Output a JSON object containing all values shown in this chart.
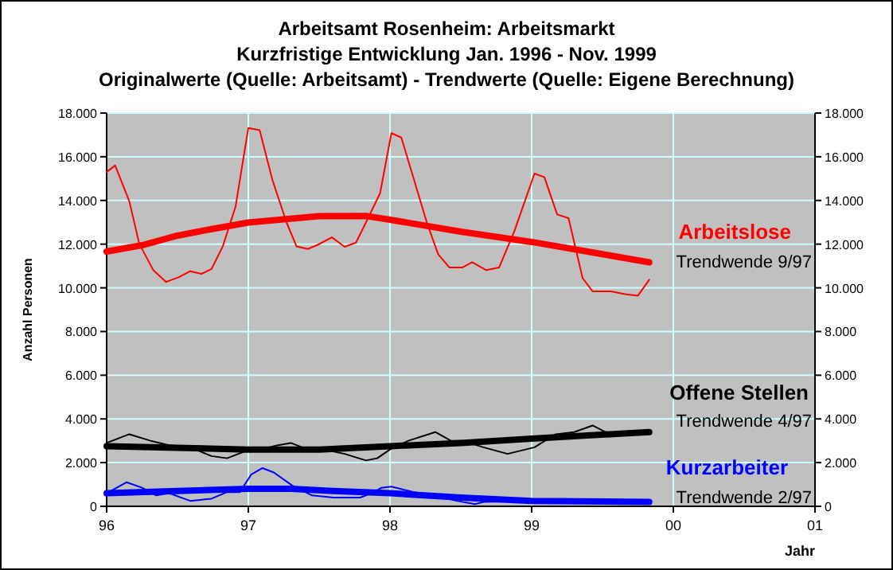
{
  "chart_data": {
    "type": "line",
    "title": "Arbeitsamt Rosenheim: Arbeitsmarkt",
    "subtitle": "Kurzfristige Entwicklung Jan. 1996 - Nov. 1999",
    "annotations": [
      "Originalwerte (Quelle: Arbeitsamt)  -  Trendwerte (Quelle: Eigene Berechnung)",
      "Trendwende 9/97",
      "Trendwende 4/97",
      "Trendwende 2/97"
    ],
    "xlabel": "Jahr",
    "ylabel": "Anzahl Personen",
    "xlim": [
      1996,
      2001
    ],
    "xticks": [
      {
        "value": 1996,
        "label": "96"
      },
      {
        "value": 1997,
        "label": "97"
      },
      {
        "value": 1998,
        "label": "98"
      },
      {
        "value": 1999,
        "label": "99"
      },
      {
        "value": 2000,
        "label": "00"
      },
      {
        "value": 2001,
        "label": "01"
      }
    ],
    "ylim": [
      0,
      18000
    ],
    "yticks": [
      {
        "value": 0,
        "label": "0"
      },
      {
        "value": 2000,
        "label": "2.000"
      },
      {
        "value": 4000,
        "label": "4.000"
      },
      {
        "value": 6000,
        "label": "6.000"
      },
      {
        "value": 8000,
        "label": "8.000"
      },
      {
        "value": 10000,
        "label": "10.000"
      },
      {
        "value": 12000,
        "label": "12.000"
      },
      {
        "value": 14000,
        "label": "14.000"
      },
      {
        "value": 16000,
        "label": "16.000"
      },
      {
        "value": 18000,
        "label": "18.000"
      }
    ],
    "y2lim": [
      0,
      18000
    ],
    "y2ticks": [
      {
        "value": 0,
        "label": "0"
      },
      {
        "value": 2000,
        "label": "2.000"
      },
      {
        "value": 4000,
        "label": "4.000"
      },
      {
        "value": 6000,
        "label": "6.000"
      },
      {
        "value": 8000,
        "label": "8.000"
      },
      {
        "value": 10000,
        "label": "10.000"
      },
      {
        "value": 12000,
        "label": "12.000"
      },
      {
        "value": 14000,
        "label": "14.000"
      },
      {
        "value": 16000,
        "label": "16.000"
      },
      {
        "value": 18000,
        "label": "18.000"
      }
    ],
    "grid": true,
    "series": [
      {
        "color": "#ff0000",
        "x": [
          1996.0,
          1996.06,
          1996.16,
          1996.23,
          1996.33,
          1996.42,
          1996.51,
          1996.59,
          1996.67,
          1996.74,
          1996.82,
          1996.91,
          1997.0,
          1997.08,
          1997.17,
          1997.27,
          1997.34,
          1997.42,
          1997.49,
          1997.59,
          1997.68,
          1997.76,
          1997.83,
          1997.93,
          1998.01,
          1998.08,
          1998.17,
          1998.26,
          1998.34,
          1998.42,
          1998.51,
          1998.58,
          1998.68,
          1998.77,
          1998.88,
          1999.02,
          1999.09,
          1999.18,
          1999.26,
          1999.36,
          1999.43,
          1999.56,
          1999.66,
          1999.75,
          1999.83
        ],
        "values": [
          15300,
          15600,
          13960,
          12020,
          10800,
          10270,
          10490,
          10760,
          10640,
          10860,
          11900,
          13720,
          17320,
          17220,
          14940,
          12990,
          11900,
          11780,
          11970,
          12310,
          11880,
          12070,
          12990,
          14330,
          17080,
          16880,
          14940,
          12990,
          11540,
          10930,
          10930,
          11170,
          10810,
          10930,
          12630,
          15230,
          15060,
          13360,
          13190,
          10440,
          9840,
          9840,
          9710,
          9640,
          10370
        ]
      },
      {
        "name": "Arbeitslose",
        "color": "#ff0000",
        "x": [
          1996.0,
          1996.25,
          1996.5,
          1996.75,
          1997.0,
          1997.5,
          1997.83,
          1998.0,
          1998.5,
          1999.0,
          1999.5,
          1999.83
        ],
        "values": [
          11660,
          11950,
          12390,
          12700,
          12990,
          13280,
          13290,
          13120,
          12570,
          12100,
          11540,
          11170
        ]
      },
      {
        "color": "#000000",
        "x": [
          1996.0,
          1996.16,
          1996.31,
          1996.44,
          1996.59,
          1996.74,
          1996.85,
          1996.97,
          1997.08,
          1997.21,
          1997.3,
          1997.38,
          1997.53,
          1997.68,
          1997.83,
          1997.91,
          1998.0,
          1998.13,
          1998.32,
          1998.43,
          1998.51,
          1998.66,
          1998.83,
          1999.02,
          1999.17,
          1999.3,
          1999.43,
          1999.52
        ],
        "values": [
          2900,
          3300,
          3000,
          2800,
          2700,
          2300,
          2200,
          2500,
          2600,
          2800,
          2900,
          2700,
          2600,
          2400,
          2100,
          2200,
          2600,
          3000,
          3400,
          3000,
          3000,
          2700,
          2400,
          2700,
          3300,
          3400,
          3700,
          3400
        ]
      },
      {
        "name": "Offene Stellen",
        "color": "#000000",
        "x": [
          1996.0,
          1997.0,
          1997.5,
          1998.0,
          1998.5,
          1999.0,
          1999.83
        ],
        "values": [
          2750,
          2600,
          2600,
          2750,
          2900,
          3100,
          3400
        ]
      },
      {
        "color": "#0000ff",
        "x": [
          1996.0,
          1996.14,
          1996.25,
          1996.35,
          1996.44,
          1996.59,
          1996.74,
          1996.85,
          1996.94,
          1997.02,
          1997.1,
          1997.18,
          1997.31,
          1997.45,
          1997.6,
          1997.79,
          1997.87,
          1997.94,
          1998.01,
          1998.17,
          1998.32,
          1998.47,
          1998.6,
          1998.66,
          1999.03,
          1999.33,
          1999.83
        ],
        "values": [
          600,
          1100,
          850,
          500,
          600,
          250,
          350,
          650,
          650,
          1450,
          1750,
          1550,
          950,
          500,
          400,
          400,
          600,
          850,
          900,
          650,
          500,
          250,
          100,
          200,
          250,
          200,
          200
        ]
      },
      {
        "name": "Kurzarbeiter",
        "color": "#0000ff",
        "x": [
          1996.0,
          1996.5,
          1997.0,
          1997.3,
          1997.6,
          1998.0,
          1998.5,
          1999.0,
          1999.83
        ],
        "values": [
          600,
          700,
          800,
          800,
          700,
          600,
          400,
          250,
          200
        ]
      }
    ]
  }
}
